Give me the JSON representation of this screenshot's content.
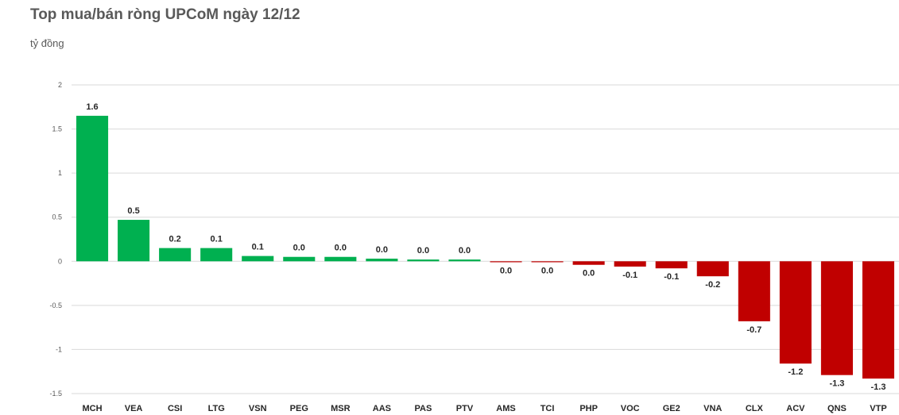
{
  "chart_data": {
    "type": "bar",
    "title": "Top mua/bán ròng UPCoM ngày 12/12",
    "unit_label": "tỷ đồng",
    "ylim": [
      -1.5,
      2
    ],
    "yticks": [
      "2",
      "1.5",
      "1",
      "0.5",
      "0",
      "-0.5",
      "-1",
      "-1.5"
    ],
    "grid": true,
    "categories": [
      "MCH",
      "VEA",
      "CSI",
      "LTG",
      "VSN",
      "PEG",
      "MSR",
      "AAS",
      "PAS",
      "PTV",
      "AMS",
      "TCI",
      "PHP",
      "VOC",
      "GE2",
      "VNA",
      "CLX",
      "ACV",
      "QNS",
      "VTP"
    ],
    "values": [
      1.65,
      0.47,
      0.15,
      0.15,
      0.06,
      0.05,
      0.05,
      0.03,
      0.02,
      0.02,
      -0.01,
      -0.01,
      -0.04,
      -0.06,
      -0.08,
      -0.17,
      -0.68,
      -1.16,
      -1.29,
      -1.33
    ],
    "data_labels": [
      "1.6",
      "0.5",
      "0.2",
      "0.1",
      "0.1",
      "0.0",
      "0.0",
      "0.0",
      "0.0",
      "0.0",
      "0.0",
      "0.0",
      "0.0",
      "-0.1",
      "-0.1",
      "-0.2",
      "-0.7",
      "-1.2",
      "-1.3",
      "-1.3"
    ],
    "positive_color": "#00b050",
    "negative_color": "#c00000",
    "grid_color": "#d9d9d9"
  }
}
